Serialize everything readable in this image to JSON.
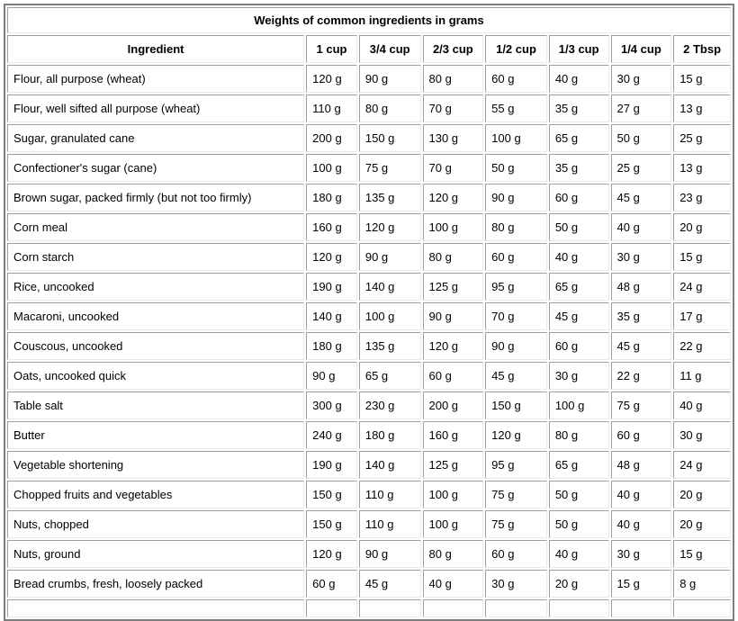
{
  "title": "Weights of common ingredients in grams",
  "table": {
    "columns": [
      "Ingredient",
      "1 cup",
      "3/4 cup",
      "2/3 cup",
      "1/2 cup",
      "1/3 cup",
      "1/4 cup",
      "2 Tbsp"
    ],
    "unit_suffix": "g",
    "rows": [
      {
        "ingredient": "Flour, all purpose (wheat)",
        "values": [
          "120 g",
          "90 g",
          "80 g",
          "60 g",
          "40 g",
          "30 g",
          "15 g"
        ]
      },
      {
        "ingredient": "Flour, well sifted all purpose (wheat)",
        "values": [
          "110 g",
          "80 g",
          "70 g",
          "55 g",
          "35 g",
          "27 g",
          "13 g"
        ]
      },
      {
        "ingredient": "Sugar, granulated cane",
        "values": [
          "200 g",
          "150 g",
          "130 g",
          "100 g",
          "65 g",
          "50 g",
          "25 g"
        ]
      },
      {
        "ingredient": "Confectioner's sugar (cane)",
        "values": [
          "100 g",
          "75 g",
          "70 g",
          "50 g",
          "35 g",
          "25 g",
          "13 g"
        ]
      },
      {
        "ingredient": "Brown sugar, packed firmly (but not too firmly)",
        "values": [
          "180 g",
          "135 g",
          "120 g",
          "90 g",
          "60 g",
          "45 g",
          "23 g"
        ]
      },
      {
        "ingredient": "Corn meal",
        "values": [
          "160 g",
          "120 g",
          "100 g",
          "80 g",
          "50 g",
          "40 g",
          "20 g"
        ]
      },
      {
        "ingredient": "Corn starch",
        "values": [
          "120 g",
          "90 g",
          "80 g",
          "60 g",
          "40 g",
          "30 g",
          "15 g"
        ]
      },
      {
        "ingredient": "Rice, uncooked",
        "values": [
          "190 g",
          "140 g",
          "125 g",
          "95 g",
          "65 g",
          "48 g",
          "24 g"
        ]
      },
      {
        "ingredient": "Macaroni, uncooked",
        "values": [
          "140 g",
          "100 g",
          "90 g",
          "70 g",
          "45 g",
          "35 g",
          "17 g"
        ]
      },
      {
        "ingredient": "Couscous, uncooked",
        "values": [
          "180 g",
          "135 g",
          "120 g",
          "90 g",
          "60 g",
          "45 g",
          "22 g"
        ]
      },
      {
        "ingredient": "Oats, uncooked quick",
        "values": [
          "90 g",
          "65 g",
          "60 g",
          "45 g",
          "30 g",
          "22 g",
          "11 g"
        ]
      },
      {
        "ingredient": "Table salt",
        "values": [
          "300 g",
          "230 g",
          "200 g",
          "150 g",
          "100 g",
          "75 g",
          "40 g"
        ]
      },
      {
        "ingredient": "Butter",
        "values": [
          "240 g",
          "180 g",
          "160 g",
          "120 g",
          "80 g",
          "60 g",
          "30 g"
        ]
      },
      {
        "ingredient": "Vegetable shortening",
        "values": [
          "190 g",
          "140 g",
          "125 g",
          "95 g",
          "65 g",
          "48 g",
          "24 g"
        ]
      },
      {
        "ingredient": "Chopped fruits and vegetables",
        "values": [
          "150 g",
          "110 g",
          "100 g",
          "75 g",
          "50 g",
          "40 g",
          "20 g"
        ]
      },
      {
        "ingredient": "Nuts, chopped",
        "values": [
          "150 g",
          "110 g",
          "100 g",
          "75 g",
          "50 g",
          "40 g",
          "20 g"
        ]
      },
      {
        "ingredient": "Nuts, ground",
        "values": [
          "120 g",
          "90 g",
          "80 g",
          "60 g",
          "40 g",
          "30 g",
          "15 g"
        ]
      },
      {
        "ingredient": "Bread crumbs, fresh, loosely packed",
        "values": [
          "60 g",
          "45 g",
          "40 g",
          "30 g",
          "20 g",
          "15 g",
          "8 g"
        ]
      }
    ]
  },
  "colors": {
    "outer_border": "#7e7e7e",
    "cell_border_dark": "#9e9e9e",
    "cell_border_light": "#e9e9e9",
    "background": "#ffffff",
    "text": "#000000"
  }
}
